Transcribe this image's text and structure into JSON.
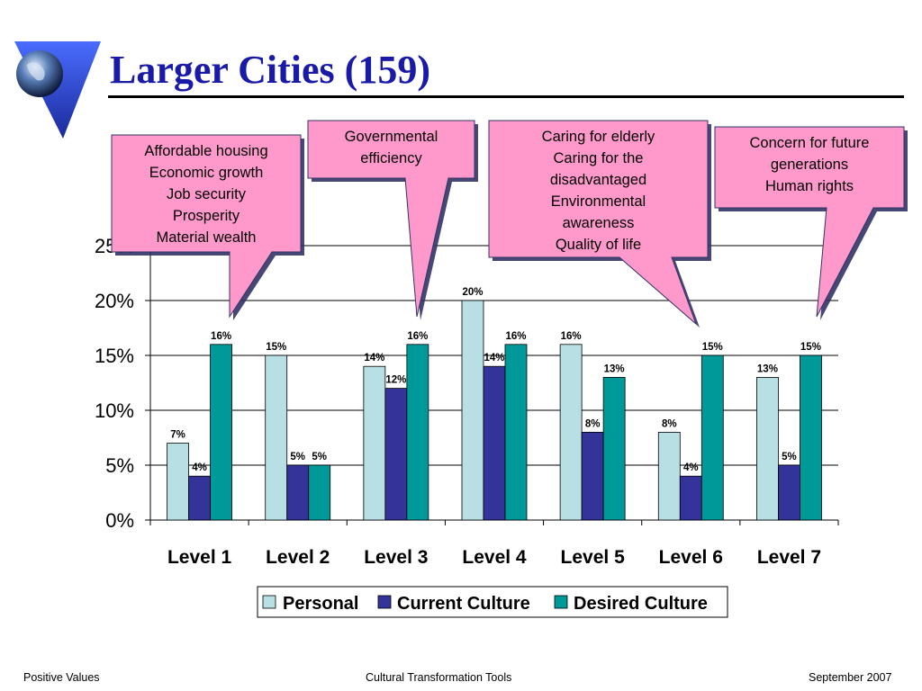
{
  "slide": {
    "title": "Larger Cities (159)",
    "footer": {
      "left": "Positive Values",
      "center": "Cultural Transformation Tools",
      "right": "September 2007"
    }
  },
  "colors": {
    "title": "#1a1aa8",
    "personal": "#b8dfe3",
    "current": "#333399",
    "desired": "#009999",
    "callout_fill": "#ff99cc",
    "callout_border": "#333366"
  },
  "callouts": [
    {
      "lines": [
        "Affordable housing",
        "Economic growth",
        "Job security",
        "Prosperity",
        "Material wealth"
      ]
    },
    {
      "lines": [
        "Governmental",
        "efficiency"
      ]
    },
    {
      "lines": [
        "Caring for elderly",
        "Caring for the",
        "disadvantaged",
        "Environmental",
        "awareness",
        "Quality of life"
      ]
    },
    {
      "lines": [
        "Concern for future",
        "generations",
        "Human rights"
      ]
    }
  ],
  "chart_data": {
    "type": "bar",
    "title": "",
    "xlabel": "",
    "ylabel": "",
    "categories": [
      "Level 1",
      "Level 2",
      "Level 3",
      "Level 4",
      "Level 5",
      "Level 6",
      "Level 7"
    ],
    "series": [
      {
        "name": "Personal",
        "values": [
          7,
          15,
          14,
          20,
          16,
          8,
          13
        ],
        "labels": [
          "7%",
          "15%",
          "14%",
          "20%",
          "16%",
          "8%",
          "13%"
        ]
      },
      {
        "name": "Current Culture",
        "values": [
          4,
          5,
          12,
          14,
          8,
          4,
          5
        ],
        "labels": [
          "4%",
          "5%",
          "12%",
          "14%",
          "8%",
          "4%",
          "5%"
        ]
      },
      {
        "name": "Desired Culture",
        "values": [
          16,
          5,
          16,
          16,
          13,
          15,
          15
        ],
        "labels": [
          "16%",
          "5%",
          "16%",
          "16%",
          "13%",
          "15%",
          "15%"
        ]
      }
    ],
    "ylim": [
      0,
      25
    ],
    "yticks": [
      0,
      5,
      10,
      15,
      20,
      25
    ],
    "ytick_labels": [
      "0%",
      "5%",
      "10%",
      "15%",
      "20%",
      "25%"
    ],
    "legend": {
      "position": "bottom"
    },
    "grid": true
  }
}
